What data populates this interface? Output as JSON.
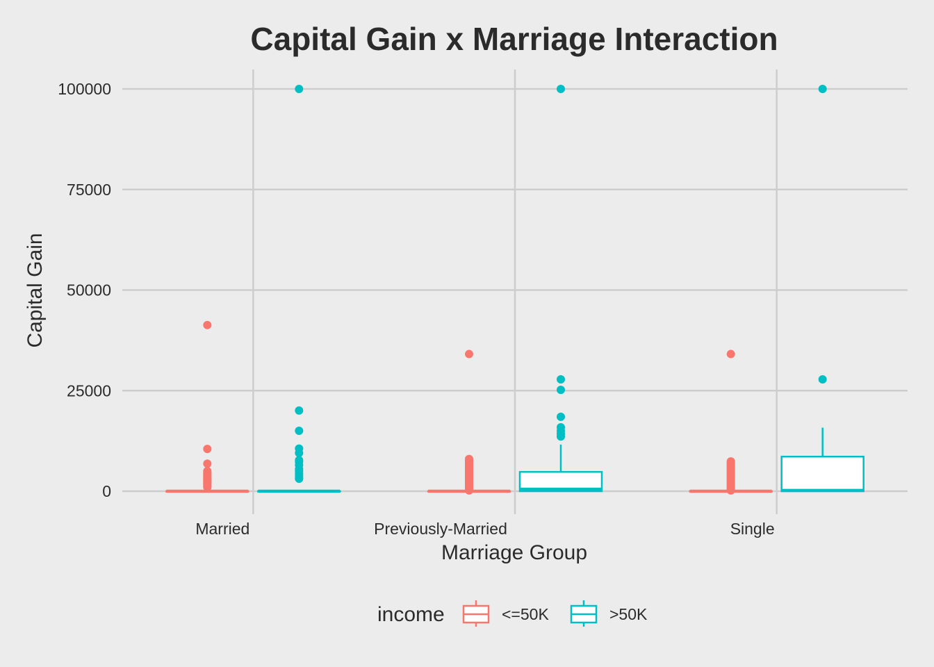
{
  "chart_data": {
    "type": "box",
    "title": "Capital Gain x Marriage Interaction",
    "xlabel": "Marriage Group",
    "ylabel": "Capital Gain",
    "categories": [
      "Married",
      "Previously-Married",
      "Single"
    ],
    "ylim": [
      -5000,
      105000
    ],
    "yticks": [
      0,
      25000,
      50000,
      75000,
      100000
    ],
    "ytick_labels": [
      "0",
      "25000",
      "50000",
      "75000",
      "100000"
    ],
    "grid": true,
    "legend": {
      "title": "income",
      "position": "bottom",
      "entries": [
        "<=50K",
        ">50K"
      ]
    },
    "series": [
      {
        "name": "<=50K",
        "color": "#f8766d",
        "boxes": [
          {
            "category": "Married",
            "q1": 0,
            "median": 0,
            "q3": 0,
            "whisker_low": 0,
            "whisker_high": 0,
            "outliers": [
              41310,
              10520,
              6850,
              5000,
              4650,
              4400,
              4100,
              3800,
              3500,
              3300,
              3100,
              2800,
              2600,
              2400,
              2200,
              2000,
              1800,
              1500,
              1200,
              1000
            ]
          },
          {
            "category": "Previously-Married",
            "q1": 0,
            "median": 0,
            "q3": 0,
            "whisker_low": 0,
            "whisker_high": 0,
            "outliers": [
              34100,
              8000,
              7700,
              7400,
              7100,
              6800,
              6500,
              6200,
              5900,
              5600,
              5300,
              5000,
              4700,
              4400,
              4100,
              3800,
              3500,
              3200,
              2900,
              2600,
              2300,
              2000,
              1700,
              1400,
              1100,
              800,
              500,
              200
            ]
          },
          {
            "category": "Single",
            "q1": 0,
            "median": 0,
            "q3": 0,
            "whisker_low": 0,
            "whisker_high": 0,
            "outliers": [
              34100,
              7400,
              7100,
              6800,
              6500,
              6200,
              5900,
              5600,
              5300,
              5000,
              4700,
              4400,
              4100,
              3800,
              3500,
              3200,
              2900,
              2600,
              2300,
              2000,
              1700,
              1400,
              1100,
              800,
              500,
              200
            ]
          }
        ]
      },
      {
        "name": ">50K",
        "color": "#00bfc4",
        "boxes": [
          {
            "category": "Married",
            "q1": 0,
            "median": 0,
            "q3": 0,
            "whisker_low": 0,
            "whisker_high": 0,
            "outliers": [
              99999,
              20050,
              15020,
              10600,
              9500,
              7700,
              7300,
              6500,
              5500,
              5000,
              4400,
              3900,
              3300,
              3100
            ]
          },
          {
            "category": "Previously-Married",
            "q1": 0,
            "median": 500,
            "q3": 4800,
            "whisker_low": 0,
            "whisker_high": 11600,
            "outliers": [
              99999,
              27800,
              25200,
              18500,
              15900,
              15000,
              14300,
              13600
            ]
          },
          {
            "category": "Single",
            "q1": 0,
            "median": 200,
            "q3": 8600,
            "whisker_low": 0,
            "whisker_high": 15800,
            "outliers": [
              99999,
              27800
            ]
          }
        ]
      }
    ]
  }
}
